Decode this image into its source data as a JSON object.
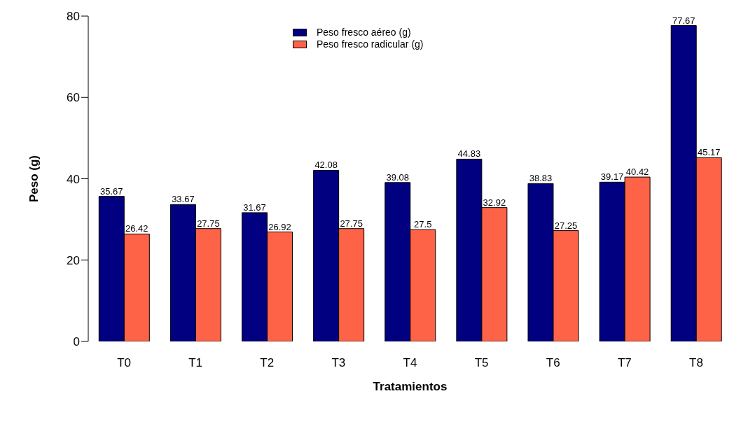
{
  "chart_data": {
    "type": "bar",
    "xlabel": "Tratamientos",
    "ylabel": "Peso (g)",
    "categories": [
      "T0",
      "T1",
      "T2",
      "T3",
      "T4",
      "T5",
      "T6",
      "T7",
      "T8"
    ],
    "series": [
      {
        "name": "Peso fresco aéreo (g)",
        "color": "#000080",
        "values": [
          35.67,
          33.67,
          31.67,
          42.08,
          39.08,
          44.83,
          38.83,
          39.17,
          77.67
        ]
      },
      {
        "name": "Peso fresco radicular (g)",
        "color": "#ff6347",
        "values": [
          26.42,
          27.75,
          26.92,
          27.75,
          27.5,
          32.92,
          27.25,
          40.42,
          45.17
        ]
      }
    ],
    "ylim": [
      0,
      80
    ],
    "yticks": [
      0,
      20,
      40,
      60,
      80
    ],
    "grid": false,
    "legend": "top",
    "data_labels": true
  }
}
